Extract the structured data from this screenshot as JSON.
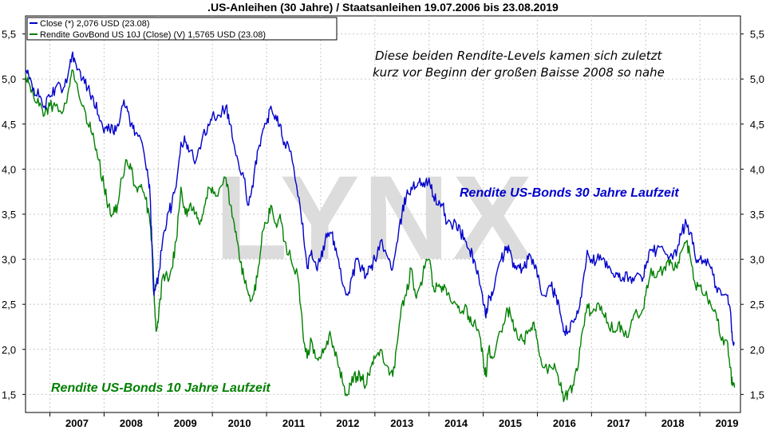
{
  "chart_data": {
    "type": "line",
    "title": ".US-Anleihen (30 Jahre) / Staatsanleihen 19.07.2006 bis 23.08.2019",
    "watermark": "LYNX",
    "x_range": [
      "2006-07-19",
      "2019-08-23"
    ],
    "x_ticks": [
      "2007",
      "2008",
      "2009",
      "2010",
      "2011",
      "2012",
      "2013",
      "2014",
      "2015",
      "2016",
      "2017",
      "2018",
      "2019"
    ],
    "ylim": [
      1.3,
      5.7
    ],
    "y_ticks": [
      "1,5",
      "2,0",
      "2,5",
      "3,0",
      "3,5",
      "4,0",
      "4,5",
      "5,0",
      "5,5"
    ],
    "grid": true,
    "legend": [
      {
        "label": "Close (*) 2,076 USD (23.08)",
        "color": "#0000cc"
      },
      {
        "label": "Rendite GovBond US 10J (Close) (V) 1,5765 USD (23.08)",
        "color": "#008000"
      }
    ],
    "note_lines": [
      "Diese beiden Rendite-Levels kamen sich zuletzt",
      "kurz vor Beginn der großen Baisse 2008 so nahe"
    ],
    "annotations": {
      "blue": {
        "text": "Rendite US-Bonds 30 Jahre Laufzeit",
        "color": "#0000cc"
      },
      "green": {
        "text": "Rendite US-Bonds 10 Jahre Laufzeit",
        "color": "#008000"
      }
    },
    "series": [
      {
        "color": "#0000cc",
        "points": [
          [
            2006.55,
            5.1
          ],
          [
            2006.62,
            5.0
          ],
          [
            2006.7,
            4.9
          ],
          [
            2006.8,
            4.8
          ],
          [
            2006.9,
            4.7
          ],
          [
            2007.0,
            4.8
          ],
          [
            2007.1,
            4.9
          ],
          [
            2007.25,
            4.9
          ],
          [
            2007.35,
            5.1
          ],
          [
            2007.42,
            5.3
          ],
          [
            2007.5,
            5.1
          ],
          [
            2007.6,
            5.0
          ],
          [
            2007.7,
            4.9
          ],
          [
            2007.8,
            4.8
          ],
          [
            2007.9,
            4.6
          ],
          [
            2008.0,
            4.4
          ],
          [
            2008.08,
            4.5
          ],
          [
            2008.17,
            4.4
          ],
          [
            2008.25,
            4.5
          ],
          [
            2008.33,
            4.7
          ],
          [
            2008.42,
            4.7
          ],
          [
            2008.5,
            4.5
          ],
          [
            2008.58,
            4.4
          ],
          [
            2008.7,
            4.3
          ],
          [
            2008.8,
            4.0
          ],
          [
            2008.85,
            3.7
          ],
          [
            2008.88,
            3.2
          ],
          [
            2008.92,
            2.6
          ],
          [
            2008.96,
            2.7
          ],
          [
            2009.0,
            2.8
          ],
          [
            2009.08,
            3.2
          ],
          [
            2009.17,
            3.5
          ],
          [
            2009.25,
            3.6
          ],
          [
            2009.33,
            3.8
          ],
          [
            2009.42,
            4.3
          ],
          [
            2009.5,
            4.3
          ],
          [
            2009.58,
            4.2
          ],
          [
            2009.7,
            4.1
          ],
          [
            2009.8,
            4.3
          ],
          [
            2009.92,
            4.5
          ],
          [
            2010.0,
            4.6
          ],
          [
            2010.1,
            4.6
          ],
          [
            2010.25,
            4.7
          ],
          [
            2010.33,
            4.5
          ],
          [
            2010.42,
            4.2
          ],
          [
            2010.5,
            4.0
          ],
          [
            2010.58,
            3.9
          ],
          [
            2010.67,
            3.6
          ],
          [
            2010.75,
            3.8
          ],
          [
            2010.83,
            4.2
          ],
          [
            2010.92,
            4.4
          ],
          [
            2011.0,
            4.5
          ],
          [
            2011.08,
            4.7
          ],
          [
            2011.17,
            4.6
          ],
          [
            2011.25,
            4.5
          ],
          [
            2011.33,
            4.3
          ],
          [
            2011.45,
            4.2
          ],
          [
            2011.58,
            3.7
          ],
          [
            2011.67,
            3.4
          ],
          [
            2011.75,
            2.9
          ],
          [
            2011.83,
            3.1
          ],
          [
            2011.92,
            2.9
          ],
          [
            2012.0,
            3.0
          ],
          [
            2012.08,
            3.2
          ],
          [
            2012.17,
            3.3
          ],
          [
            2012.25,
            3.2
          ],
          [
            2012.33,
            3.0
          ],
          [
            2012.42,
            2.7
          ],
          [
            2012.5,
            2.6
          ],
          [
            2012.58,
            2.8
          ],
          [
            2012.67,
            3.0
          ],
          [
            2012.75,
            2.9
          ],
          [
            2012.83,
            2.8
          ],
          [
            2012.92,
            2.9
          ],
          [
            2013.0,
            3.0
          ],
          [
            2013.1,
            3.2
          ],
          [
            2013.25,
            3.0
          ],
          [
            2013.33,
            2.9
          ],
          [
            2013.42,
            3.2
          ],
          [
            2013.5,
            3.5
          ],
          [
            2013.58,
            3.7
          ],
          [
            2013.67,
            3.8
          ],
          [
            2013.75,
            3.8
          ],
          [
            2013.83,
            3.9
          ],
          [
            2013.92,
            3.8
          ],
          [
            2014.0,
            3.9
          ],
          [
            2014.08,
            3.7
          ],
          [
            2014.17,
            3.6
          ],
          [
            2014.25,
            3.6
          ],
          [
            2014.33,
            3.4
          ],
          [
            2014.5,
            3.4
          ],
          [
            2014.58,
            3.3
          ],
          [
            2014.67,
            3.2
          ],
          [
            2014.75,
            3.1
          ],
          [
            2014.83,
            3.0
          ],
          [
            2014.92,
            2.8
          ],
          [
            2015.0,
            2.5
          ],
          [
            2015.05,
            2.35
          ],
          [
            2015.1,
            2.6
          ],
          [
            2015.17,
            2.6
          ],
          [
            2015.33,
            3.0
          ],
          [
            2015.42,
            3.1
          ],
          [
            2015.5,
            3.1
          ],
          [
            2015.58,
            2.9
          ],
          [
            2015.67,
            2.9
          ],
          [
            2015.75,
            2.9
          ],
          [
            2015.83,
            3.0
          ],
          [
            2015.92,
            3.0
          ],
          [
            2016.0,
            2.8
          ],
          [
            2016.1,
            2.6
          ],
          [
            2016.25,
            2.7
          ],
          [
            2016.33,
            2.6
          ],
          [
            2016.42,
            2.4
          ],
          [
            2016.5,
            2.2
          ],
          [
            2016.58,
            2.2
          ],
          [
            2016.67,
            2.3
          ],
          [
            2016.75,
            2.4
          ],
          [
            2016.83,
            2.7
          ],
          [
            2016.92,
            3.1
          ],
          [
            2017.0,
            3.0
          ],
          [
            2017.1,
            3.0
          ],
          [
            2017.2,
            3.0
          ],
          [
            2017.3,
            2.9
          ],
          [
            2017.42,
            2.8
          ],
          [
            2017.5,
            2.8
          ],
          [
            2017.58,
            2.8
          ],
          [
            2017.7,
            2.8
          ],
          [
            2017.8,
            2.8
          ],
          [
            2017.92,
            2.8
          ],
          [
            2018.0,
            2.9
          ],
          [
            2018.1,
            3.1
          ],
          [
            2018.2,
            3.1
          ],
          [
            2018.33,
            3.1
          ],
          [
            2018.42,
            3.0
          ],
          [
            2018.5,
            3.0
          ],
          [
            2018.58,
            3.1
          ],
          [
            2018.67,
            3.3
          ],
          [
            2018.75,
            3.4
          ],
          [
            2018.83,
            3.3
          ],
          [
            2018.92,
            3.0
          ],
          [
            2019.0,
            3.0
          ],
          [
            2019.1,
            3.0
          ],
          [
            2019.2,
            2.9
          ],
          [
            2019.3,
            2.7
          ],
          [
            2019.4,
            2.6
          ],
          [
            2019.5,
            2.6
          ],
          [
            2019.57,
            2.4
          ],
          [
            2019.6,
            2.1
          ],
          [
            2019.64,
            2.076
          ]
        ]
      },
      {
        "color": "#008000",
        "points": [
          [
            2006.55,
            5.05
          ],
          [
            2006.62,
            4.95
          ],
          [
            2006.7,
            4.8
          ],
          [
            2006.8,
            4.7
          ],
          [
            2006.9,
            4.6
          ],
          [
            2007.0,
            4.7
          ],
          [
            2007.1,
            4.7
          ],
          [
            2007.25,
            4.65
          ],
          [
            2007.35,
            4.9
          ],
          [
            2007.42,
            5.1
          ],
          [
            2007.5,
            4.95
          ],
          [
            2007.6,
            4.7
          ],
          [
            2007.7,
            4.5
          ],
          [
            2007.8,
            4.4
          ],
          [
            2007.9,
            4.1
          ],
          [
            2008.0,
            3.8
          ],
          [
            2008.08,
            3.6
          ],
          [
            2008.17,
            3.5
          ],
          [
            2008.25,
            3.6
          ],
          [
            2008.33,
            3.9
          ],
          [
            2008.42,
            4.1
          ],
          [
            2008.5,
            4.0
          ],
          [
            2008.58,
            3.8
          ],
          [
            2008.67,
            3.8
          ],
          [
            2008.75,
            3.7
          ],
          [
            2008.83,
            3.5
          ],
          [
            2008.88,
            3.2
          ],
          [
            2008.92,
            2.7
          ],
          [
            2008.96,
            2.2
          ],
          [
            2009.0,
            2.3
          ],
          [
            2009.08,
            2.8
          ],
          [
            2009.17,
            2.8
          ],
          [
            2009.25,
            2.9
          ],
          [
            2009.33,
            3.2
          ],
          [
            2009.42,
            3.8
          ],
          [
            2009.5,
            3.5
          ],
          [
            2009.58,
            3.6
          ],
          [
            2009.67,
            3.5
          ],
          [
            2009.75,
            3.4
          ],
          [
            2009.83,
            3.5
          ],
          [
            2009.92,
            3.8
          ],
          [
            2010.0,
            3.8
          ],
          [
            2010.1,
            3.7
          ],
          [
            2010.25,
            3.9
          ],
          [
            2010.33,
            3.6
          ],
          [
            2010.42,
            3.3
          ],
          [
            2010.5,
            3.0
          ],
          [
            2010.58,
            2.8
          ],
          [
            2010.67,
            2.6
          ],
          [
            2010.75,
            2.6
          ],
          [
            2010.83,
            2.8
          ],
          [
            2010.92,
            3.3
          ],
          [
            2011.0,
            3.4
          ],
          [
            2011.08,
            3.6
          ],
          [
            2011.17,
            3.4
          ],
          [
            2011.25,
            3.5
          ],
          [
            2011.33,
            3.2
          ],
          [
            2011.45,
            3.0
          ],
          [
            2011.58,
            2.8
          ],
          [
            2011.67,
            2.2
          ],
          [
            2011.75,
            1.9
          ],
          [
            2011.83,
            2.1
          ],
          [
            2011.92,
            1.9
          ],
          [
            2012.0,
            1.9
          ],
          [
            2012.08,
            2.0
          ],
          [
            2012.17,
            2.2
          ],
          [
            2012.25,
            2.0
          ],
          [
            2012.33,
            1.8
          ],
          [
            2012.42,
            1.6
          ],
          [
            2012.5,
            1.5
          ],
          [
            2012.58,
            1.7
          ],
          [
            2012.67,
            1.7
          ],
          [
            2012.75,
            1.7
          ],
          [
            2012.83,
            1.6
          ],
          [
            2012.92,
            1.8
          ],
          [
            2013.0,
            1.9
          ],
          [
            2013.1,
            2.0
          ],
          [
            2013.25,
            1.8
          ],
          [
            2013.33,
            1.7
          ],
          [
            2013.42,
            2.1
          ],
          [
            2013.5,
            2.5
          ],
          [
            2013.58,
            2.6
          ],
          [
            2013.67,
            2.9
          ],
          [
            2013.75,
            2.6
          ],
          [
            2013.83,
            2.7
          ],
          [
            2013.92,
            2.9
          ],
          [
            2014.0,
            3.0
          ],
          [
            2014.08,
            2.7
          ],
          [
            2014.17,
            2.7
          ],
          [
            2014.25,
            2.7
          ],
          [
            2014.33,
            2.6
          ],
          [
            2014.5,
            2.5
          ],
          [
            2014.58,
            2.4
          ],
          [
            2014.67,
            2.5
          ],
          [
            2014.75,
            2.3
          ],
          [
            2014.83,
            2.3
          ],
          [
            2014.92,
            2.2
          ],
          [
            2015.0,
            1.9
          ],
          [
            2015.05,
            1.7
          ],
          [
            2015.1,
            2.0
          ],
          [
            2015.17,
            1.9
          ],
          [
            2015.33,
            2.2
          ],
          [
            2015.42,
            2.4
          ],
          [
            2015.5,
            2.4
          ],
          [
            2015.58,
            2.2
          ],
          [
            2015.67,
            2.1
          ],
          [
            2015.75,
            2.1
          ],
          [
            2015.83,
            2.2
          ],
          [
            2015.92,
            2.3
          ],
          [
            2016.0,
            2.1
          ],
          [
            2016.1,
            1.8
          ],
          [
            2016.25,
            1.8
          ],
          [
            2016.33,
            1.8
          ],
          [
            2016.42,
            1.6
          ],
          [
            2016.5,
            1.45
          ],
          [
            2016.58,
            1.55
          ],
          [
            2016.67,
            1.6
          ],
          [
            2016.75,
            1.8
          ],
          [
            2016.83,
            2.2
          ],
          [
            2016.92,
            2.5
          ],
          [
            2017.0,
            2.4
          ],
          [
            2017.1,
            2.5
          ],
          [
            2017.2,
            2.4
          ],
          [
            2017.3,
            2.3
          ],
          [
            2017.42,
            2.2
          ],
          [
            2017.5,
            2.3
          ],
          [
            2017.58,
            2.2
          ],
          [
            2017.7,
            2.2
          ],
          [
            2017.8,
            2.4
          ],
          [
            2017.92,
            2.4
          ],
          [
            2018.0,
            2.6
          ],
          [
            2018.1,
            2.9
          ],
          [
            2018.2,
            2.8
          ],
          [
            2018.33,
            2.9
          ],
          [
            2018.42,
            3.0
          ],
          [
            2018.5,
            2.9
          ],
          [
            2018.58,
            2.9
          ],
          [
            2018.67,
            3.1
          ],
          [
            2018.75,
            3.2
          ],
          [
            2018.83,
            3.0
          ],
          [
            2018.92,
            2.7
          ],
          [
            2019.0,
            2.7
          ],
          [
            2019.1,
            2.6
          ],
          [
            2019.2,
            2.5
          ],
          [
            2019.3,
            2.4
          ],
          [
            2019.4,
            2.1
          ],
          [
            2019.5,
            2.1
          ],
          [
            2019.57,
            1.8
          ],
          [
            2019.6,
            1.6
          ],
          [
            2019.64,
            1.5765
          ]
        ]
      }
    ]
  }
}
